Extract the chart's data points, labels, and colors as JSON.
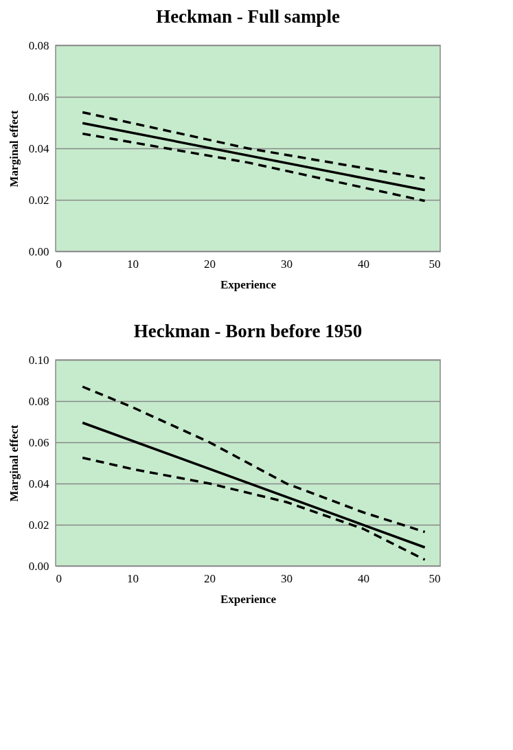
{
  "chart_data": [
    {
      "type": "line",
      "title": "Heckman - Full sample",
      "xlabel": "Experience",
      "ylabel": "Marginal effect",
      "xlim": [
        0,
        50
      ],
      "xticks": [
        0,
        10,
        20,
        30,
        40,
        50
      ],
      "ylim": [
        0,
        0.08
      ],
      "yticks": [
        {
          "value": 0,
          "label": "0.00"
        },
        {
          "value": 0.02,
          "label": "0.02"
        },
        {
          "value": 0.04,
          "label": "0.04"
        },
        {
          "value": 0.06,
          "label": "0.06"
        },
        {
          "value": 0.08,
          "label": "0.08"
        }
      ],
      "grid": "y",
      "series": [
        {
          "color": "#000000",
          "line_style": "solid",
          "x": [
            3.5,
            48
          ],
          "values": [
            0.0498,
            0.0238
          ]
        },
        {
          "color": "#000000",
          "line_style": "dashed",
          "x": [
            3.5,
            25,
            48
          ],
          "values": [
            0.054,
            0.04,
            0.0283
          ]
        },
        {
          "color": "#000000",
          "line_style": "dashed",
          "x": [
            3.5,
            25,
            48
          ],
          "values": [
            0.0457,
            0.0345,
            0.0196
          ]
        }
      ]
    },
    {
      "type": "line",
      "title": "Heckman - Born before 1950",
      "xlabel": "Experience",
      "ylabel": "Marginal effect",
      "xlim": [
        0,
        50
      ],
      "xticks": [
        0,
        10,
        20,
        30,
        40,
        50
      ],
      "ylim": [
        0,
        0.1
      ],
      "yticks": [
        {
          "value": 0,
          "label": "0.00"
        },
        {
          "value": 0.02,
          "label": "0.02"
        },
        {
          "value": 0.04,
          "label": "0.04"
        },
        {
          "value": 0.06,
          "label": "0.06"
        },
        {
          "value": 0.08,
          "label": "0.08"
        },
        {
          "value": 0.1,
          "label": "0.10"
        }
      ],
      "grid": "y",
      "series": [
        {
          "color": "#000000",
          "line_style": "solid",
          "x": [
            3.5,
            48
          ],
          "values": [
            0.0695,
            0.009
          ]
        },
        {
          "color": "#000000",
          "line_style": "dashed",
          "x": [
            3.5,
            10,
            20,
            30,
            40,
            48
          ],
          "values": [
            0.087,
            0.077,
            0.06,
            0.04,
            0.026,
            0.0165
          ]
        },
        {
          "color": "#000000",
          "line_style": "dashed",
          "x": [
            3.5,
            10,
            20,
            30,
            40,
            48
          ],
          "values": [
            0.0525,
            0.047,
            0.04,
            0.031,
            0.018,
            0.003
          ]
        }
      ]
    }
  ]
}
